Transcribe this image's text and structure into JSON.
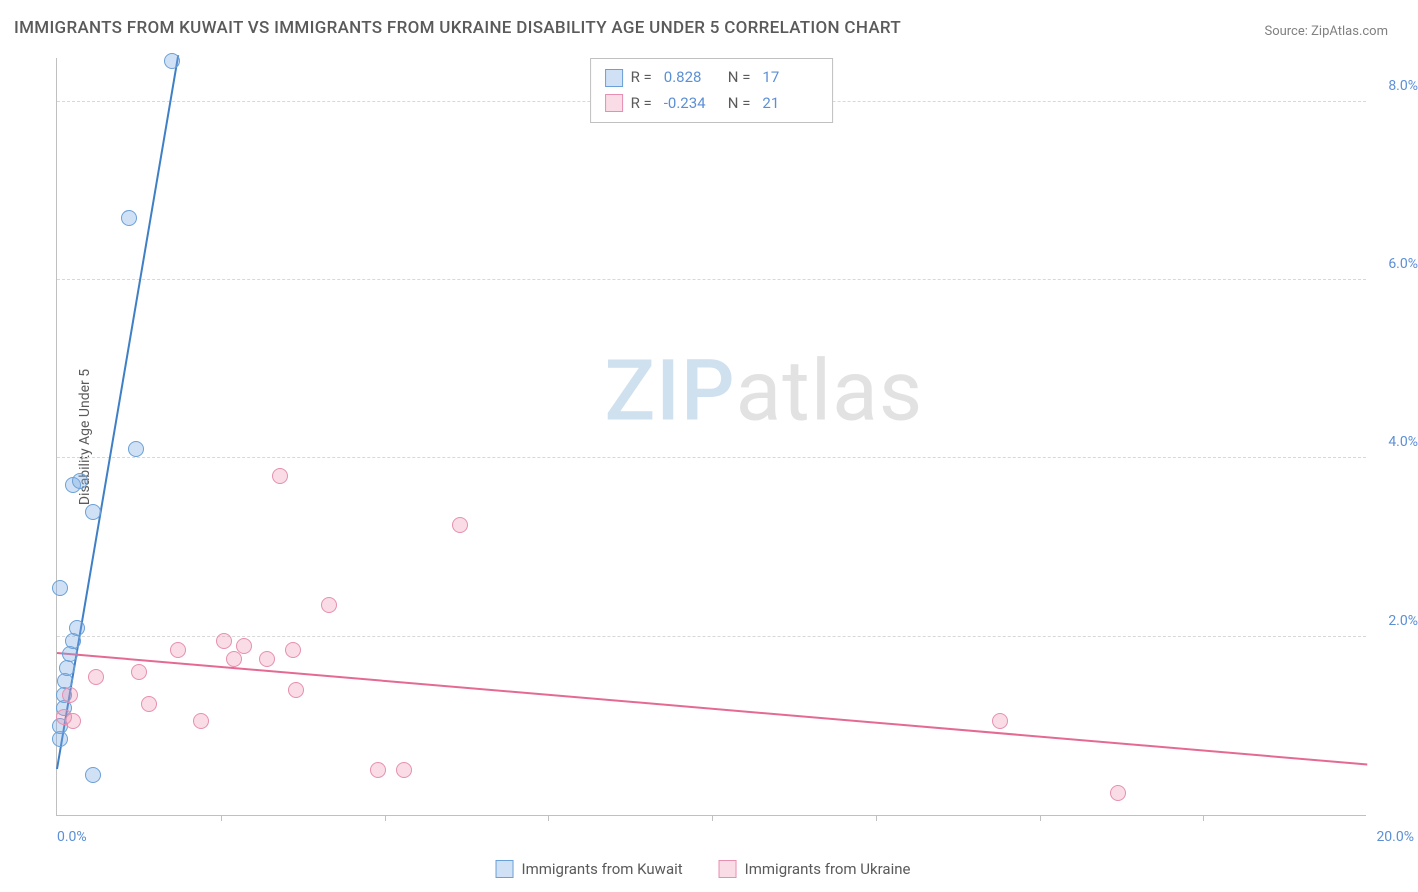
{
  "title": "IMMIGRANTS FROM KUWAIT VS IMMIGRANTS FROM UKRAINE DISABILITY AGE UNDER 5 CORRELATION CHART",
  "source": "Source: ZipAtlas.com",
  "ylabel": "Disability Age Under 5",
  "watermark": {
    "a": "ZIP",
    "b": "atlas"
  },
  "chart": {
    "type": "scatter",
    "xlim": [
      0,
      20
    ],
    "ylim": [
      0,
      8.5
    ],
    "x_ticks_minor": [
      2.5,
      5,
      7.5,
      10,
      12.5,
      15,
      17.5
    ],
    "x_tick_labels": [
      {
        "pos": 0,
        "text": "0.0%",
        "align": "left"
      },
      {
        "pos": 20,
        "text": "20.0%",
        "align": "right"
      }
    ],
    "y_gridlines": [
      2,
      4,
      6,
      8
    ],
    "y_tick_labels": [
      {
        "pos": 2,
        "text": "2.0%"
      },
      {
        "pos": 4,
        "text": "4.0%"
      },
      {
        "pos": 6,
        "text": "6.0%"
      },
      {
        "pos": 8,
        "text": "8.0%"
      }
    ],
    "background_color": "#ffffff",
    "grid_color": "#d8d8d8",
    "axis_color": "#c0c0c0",
    "tick_label_color": "#5b8fd6",
    "series": [
      {
        "name": "Immigrants from Kuwait",
        "fill": "rgba(120,170,225,0.35)",
        "stroke": "#6aa0d8",
        "line_color": "#3f7fc5",
        "r": 0.828,
        "n": 17,
        "trend": {
          "x1": 0.0,
          "y1": 0.5,
          "x2": 1.85,
          "y2": 8.5
        },
        "points": [
          [
            0.05,
            0.85
          ],
          [
            0.05,
            1.0
          ],
          [
            0.1,
            1.2
          ],
          [
            0.1,
            1.35
          ],
          [
            0.12,
            1.5
          ],
          [
            0.15,
            1.65
          ],
          [
            0.2,
            1.8
          ],
          [
            0.25,
            1.95
          ],
          [
            0.3,
            2.1
          ],
          [
            0.55,
            0.45
          ],
          [
            0.55,
            3.4
          ],
          [
            0.25,
            3.7
          ],
          [
            0.35,
            3.75
          ],
          [
            1.2,
            4.1
          ],
          [
            1.1,
            6.7
          ],
          [
            1.75,
            8.45
          ],
          [
            0.05,
            2.55
          ]
        ]
      },
      {
        "name": "Immigrants from Ukraine",
        "fill": "rgba(235,140,170,0.30)",
        "stroke": "#e78fb0",
        "line_color": "#e46a92",
        "r": -0.234,
        "n": 21,
        "trend": {
          "x1": 0.0,
          "y1": 1.8,
          "x2": 20.0,
          "y2": 0.55
        },
        "points": [
          [
            0.1,
            1.1
          ],
          [
            0.2,
            1.35
          ],
          [
            0.25,
            1.05
          ],
          [
            0.6,
            1.55
          ],
          [
            1.25,
            1.6
          ],
          [
            1.4,
            1.25
          ],
          [
            1.85,
            1.85
          ],
          [
            2.2,
            1.05
          ],
          [
            2.55,
            1.95
          ],
          [
            2.7,
            1.75
          ],
          [
            2.85,
            1.9
          ],
          [
            3.2,
            1.75
          ],
          [
            3.4,
            3.8
          ],
          [
            3.6,
            1.85
          ],
          [
            3.65,
            1.4
          ],
          [
            4.15,
            2.35
          ],
          [
            4.9,
            0.5
          ],
          [
            5.3,
            0.5
          ],
          [
            6.15,
            3.25
          ],
          [
            14.4,
            1.05
          ],
          [
            16.2,
            0.25
          ]
        ]
      }
    ]
  },
  "legend_top": {
    "r_label": "R =",
    "n_label": "N ="
  },
  "legend_bottom": [
    {
      "series": 0
    },
    {
      "series": 1
    }
  ]
}
